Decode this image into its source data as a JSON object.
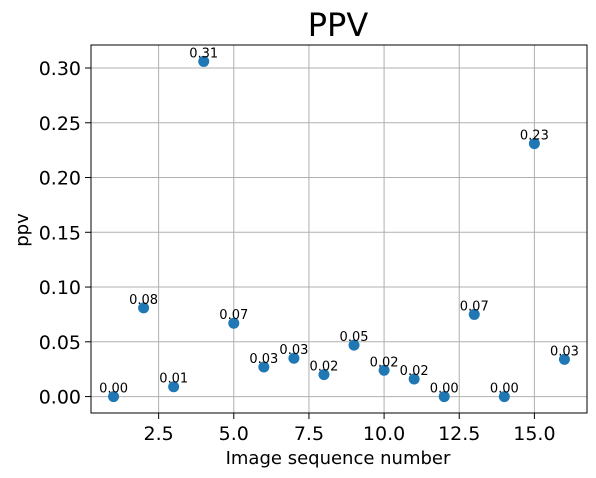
{
  "chart_data": {
    "type": "scatter",
    "title": "PPV",
    "xlabel": "Image sequence number",
    "ylabel": "ppv",
    "xlim": [
      0.25,
      16.75
    ],
    "ylim": [
      -0.015,
      0.321
    ],
    "xticks": [
      2.5,
      5.0,
      7.5,
      10.0,
      12.5,
      15.0
    ],
    "xtick_labels": [
      "2.5",
      "5.0",
      "7.5",
      "10.0",
      "12.5",
      "15.0"
    ],
    "yticks": [
      0.0,
      0.05,
      0.1,
      0.15,
      0.2,
      0.25,
      0.3
    ],
    "ytick_labels": [
      "0.00",
      "0.05",
      "0.10",
      "0.15",
      "0.20",
      "0.25",
      "0.30"
    ],
    "grid": true,
    "series": [
      {
        "color": "#1f77b4",
        "points": [
          {
            "x": 1,
            "y": 0.0,
            "label": "0.00"
          },
          {
            "x": 2,
            "y": 0.081,
            "label": "0.08"
          },
          {
            "x": 3,
            "y": 0.009,
            "label": "0.01"
          },
          {
            "x": 4,
            "y": 0.306,
            "label": "0.31"
          },
          {
            "x": 5,
            "y": 0.067,
            "label": "0.07"
          },
          {
            "x": 6,
            "y": 0.027,
            "label": "0.03"
          },
          {
            "x": 7,
            "y": 0.035,
            "label": "0.03"
          },
          {
            "x": 8,
            "y": 0.02,
            "label": "0.02"
          },
          {
            "x": 9,
            "y": 0.047,
            "label": "0.05"
          },
          {
            "x": 10,
            "y": 0.024,
            "label": "0.02"
          },
          {
            "x": 11,
            "y": 0.016,
            "label": "0.02"
          },
          {
            "x": 12,
            "y": 0.0,
            "label": "0.00"
          },
          {
            "x": 13,
            "y": 0.075,
            "label": "0.07"
          },
          {
            "x": 14,
            "y": 0.0,
            "label": "0.00"
          },
          {
            "x": 15,
            "y": 0.231,
            "label": "0.23"
          },
          {
            "x": 16,
            "y": 0.034,
            "label": "0.03"
          }
        ]
      }
    ]
  }
}
